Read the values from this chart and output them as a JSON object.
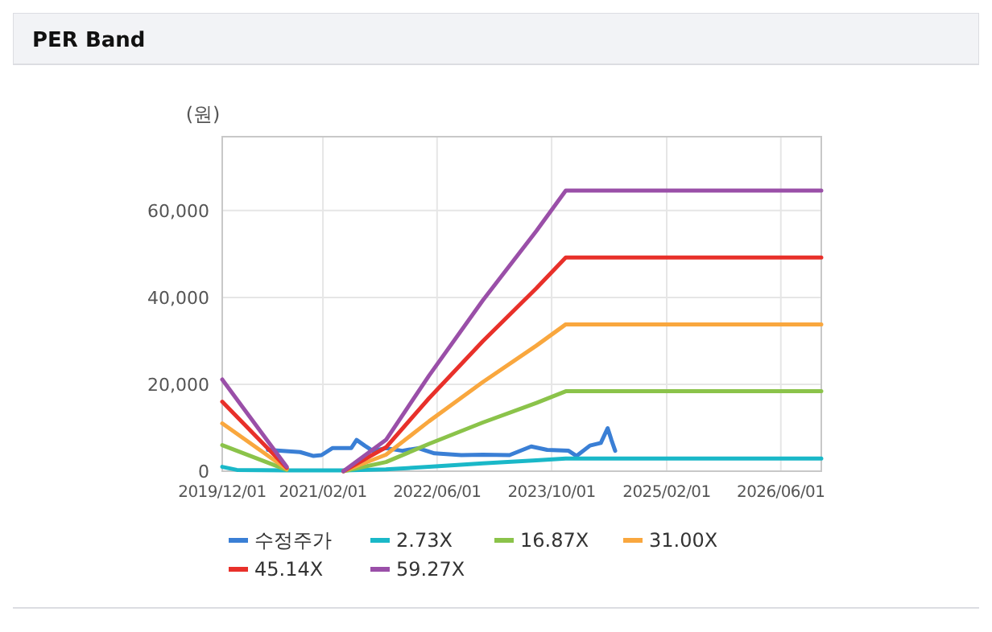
{
  "chart_data": {
    "type": "line",
    "title": "PER Band",
    "ylabel": "(원)",
    "xlim": [
      "2019-12-01",
      "2026-11-20"
    ],
    "ylim": [
      0,
      77000
    ],
    "xticks": [
      {
        "value": "2019-12-01",
        "label": "2019/12/01"
      },
      {
        "value": "2021-02-01",
        "label": "2021/02/01"
      },
      {
        "value": "2022-06-01",
        "label": "2022/06/01"
      },
      {
        "value": "2023-10-01",
        "label": "2023/10/01"
      },
      {
        "value": "2025-02-01",
        "label": "2025/02/01"
      },
      {
        "value": "2026-06-01",
        "label": "2026/06/01"
      }
    ],
    "yticks": [
      0,
      {
        "value": 20000,
        "label": "20,000"
      },
      {
        "value": 40000,
        "label": "40,000"
      },
      {
        "value": 60000,
        "label": "60,000"
      }
    ],
    "grid": true,
    "legend": "bottom",
    "marker": "none",
    "line_style": "solid",
    "series": [
      {
        "name": "수정주가",
        "color": "#3a7fd5",
        "x": [
          "2020-06-12",
          "2020-10-27",
          "2020-12-23",
          "2021-01-26",
          "2021-03-13",
          "2021-06-01",
          "2021-06-24",
          "2021-07-28",
          "2021-08-31",
          "2021-10-27",
          "2022-01-04",
          "2022-03-13",
          "2022-05-21",
          "2022-09-12",
          "2022-12-12",
          "2023-04-05",
          "2023-07-06",
          "2023-09-12",
          "2023-12-12",
          "2024-01-15",
          "2024-03-12",
          "2024-04-27",
          "2024-05-26",
          "2024-06-11",
          "2024-06-27"
        ],
        "values": [
          4900,
          4400,
          3500,
          3700,
          5300,
          5300,
          7200,
          5900,
          4700,
          5300,
          4700,
          5300,
          4100,
          3700,
          3800,
          3700,
          5700,
          4900,
          4700,
          3500,
          5900,
          6500,
          9900,
          7200,
          4700
        ]
      },
      {
        "name": "2.73X",
        "color": "#1ab8c8",
        "x": [
          "2019-12-01",
          "2020-02-01",
          "2020-08-31",
          "2020-12-31",
          "2021-04-29",
          "2021-10-27",
          "2022-04-28",
          "2022-12-12",
          "2023-07-28",
          "2023-11-30",
          "2026-11-20"
        ],
        "values": [
          1000,
          300,
          200,
          200,
          200,
          400,
          1000,
          1800,
          2500,
          2900,
          2900
        ]
      },
      {
        "name": "16.87X",
        "color": "#8bc34a",
        "x": [
          "2019-12-01",
          "2020-08-31",
          "2020-12-31",
          "2021-04-29",
          "2021-10-27",
          "2022-04-28",
          "2022-12-12",
          "2023-07-28",
          "2023-11-30",
          "2026-11-20"
        ],
        "values": [
          6000,
          300,
          null,
          0,
          2100,
          6300,
          11200,
          15700,
          18400,
          18400
        ]
      },
      {
        "name": "31.00X",
        "color": "#f9a73e",
        "x": [
          "2019-12-01",
          "2020-08-31",
          "2020-12-31",
          "2021-04-29",
          "2021-10-27",
          "2022-04-28",
          "2022-12-12",
          "2023-07-28",
          "2023-11-30",
          "2026-11-20"
        ],
        "values": [
          11000,
          500,
          null,
          0,
          3800,
          11500,
          20500,
          28900,
          33800,
          33800
        ]
      },
      {
        "name": "45.14X",
        "color": "#e8302a",
        "x": [
          "2019-12-01",
          "2020-08-31",
          "2020-12-31",
          "2021-04-29",
          "2021-10-27",
          "2022-04-28",
          "2022-12-12",
          "2023-07-28",
          "2023-11-30",
          "2026-11-20"
        ],
        "values": [
          16000,
          800,
          null,
          0,
          5500,
          16800,
          29900,
          42100,
          49200,
          49200
        ]
      },
      {
        "name": "59.27X",
        "color": "#9a4fa8",
        "x": [
          "2019-12-01",
          "2020-08-31",
          "2020-12-31",
          "2021-04-29",
          "2021-10-27",
          "2022-04-28",
          "2022-12-12",
          "2023-07-28",
          "2023-11-30",
          "2026-11-20"
        ],
        "values": [
          21100,
          1000,
          null,
          0,
          7200,
          22000,
          39300,
          55300,
          64600,
          64600
        ]
      }
    ]
  }
}
